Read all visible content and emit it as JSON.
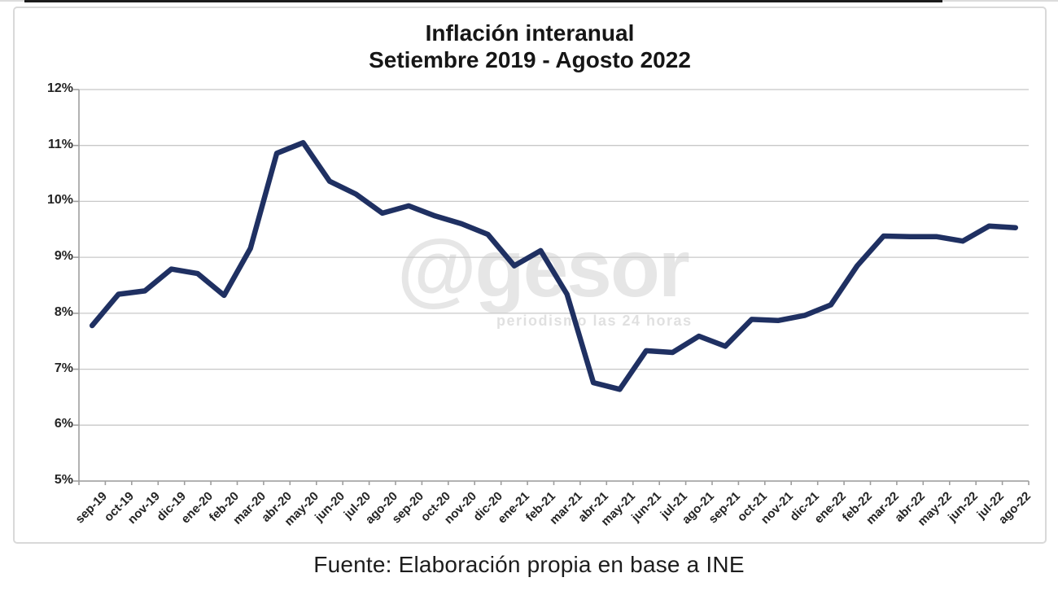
{
  "header": {
    "title_line1": "Inflación interanual",
    "title_line2": "Setiembre 2019 - Agosto 2022"
  },
  "watermark": {
    "logo": "@gesor",
    "tagline": "periodismo las 24 horas"
  },
  "footer": {
    "source": "Fuente: Elaboración propia en base a INE"
  },
  "colors": {
    "line": "#1F3062",
    "grid": "#C8C8C8",
    "axis": "#9E9E9E",
    "text": "#242424"
  },
  "chart_data": {
    "type": "line",
    "title": "Inflación interanual",
    "subtitle": "Setiembre 2019 - Agosto 2022",
    "xlabel": "",
    "ylabel": "",
    "ylim": [
      5,
      12
    ],
    "ytick_step": 1,
    "ytick_suffix": "%",
    "grid": "horizontal",
    "legend": false,
    "source": "Fuente: Elaboración propia en base a INE",
    "categories": [
      "sep-19",
      "oct-19",
      "nov-19",
      "dic-19",
      "ene-20",
      "feb-20",
      "mar-20",
      "abr-20",
      "may-20",
      "jun-20",
      "jul-20",
      "ago-20",
      "sep-20",
      "oct-20",
      "nov-20",
      "dic-20",
      "ene-21",
      "feb-21",
      "mar-21",
      "abr-21",
      "may-21",
      "jun-21",
      "jul-21",
      "ago-21",
      "sep-21",
      "oct-21",
      "nov-21",
      "dic-21",
      "ene-22",
      "feb-22",
      "mar-22",
      "abr-22",
      "may-22",
      "jun-22",
      "jul-22",
      "ago-22"
    ],
    "series": [
      {
        "name": "Inflación interanual",
        "values": [
          7.78,
          8.34,
          8.4,
          8.79,
          8.71,
          8.32,
          9.16,
          10.86,
          11.05,
          10.36,
          10.13,
          9.79,
          9.92,
          9.74,
          9.6,
          9.41,
          8.85,
          9.12,
          8.34,
          6.76,
          6.64,
          7.33,
          7.3,
          7.59,
          7.41,
          7.89,
          7.87,
          7.96,
          8.15,
          8.85,
          9.38,
          9.37,
          9.37,
          9.29,
          9.56,
          9.53
        ]
      }
    ]
  }
}
